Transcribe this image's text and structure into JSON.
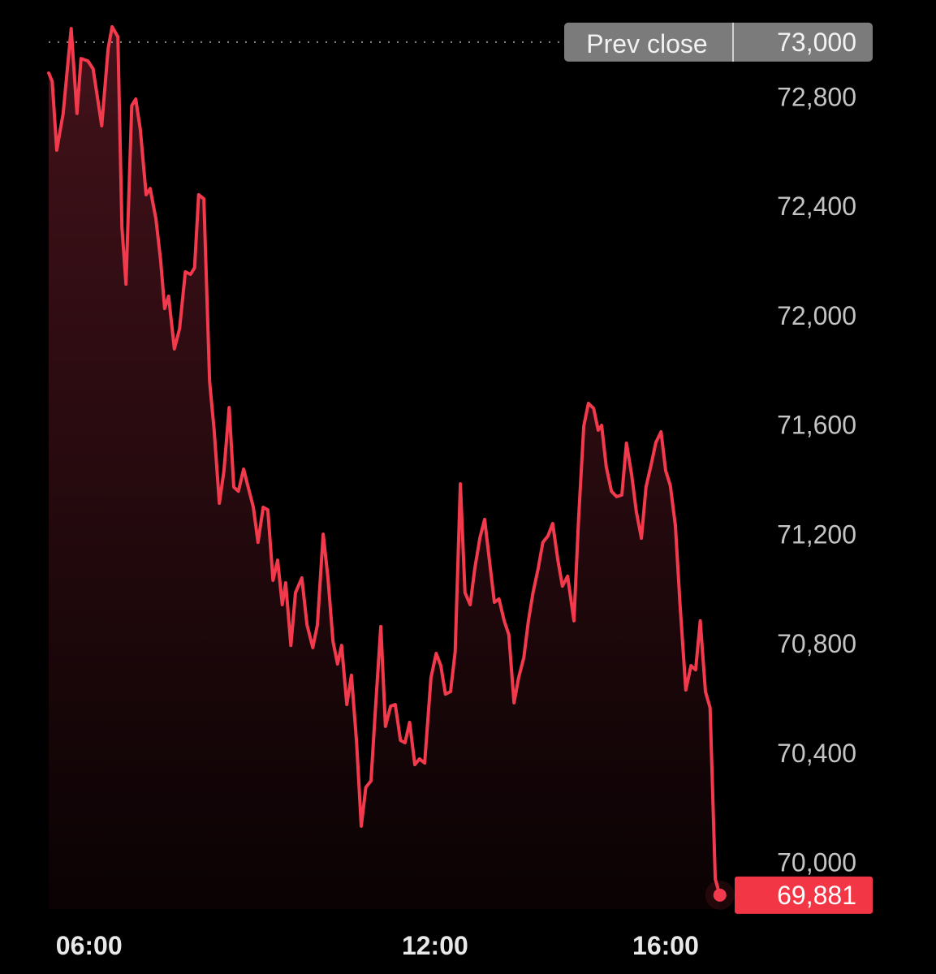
{
  "chart_data": {
    "type": "area",
    "color": "#f23a4c",
    "xlim": [
      5.3,
      17.0
    ],
    "xticks": [
      {
        "value": 6,
        "label": "06:00"
      },
      {
        "value": 12,
        "label": "12:00"
      },
      {
        "value": 16,
        "label": "16:00"
      }
    ],
    "ylim": [
      69830,
      73065
    ],
    "yticks": [
      {
        "value": 70000,
        "label": "70,000"
      },
      {
        "value": 70400,
        "label": "70,400"
      },
      {
        "value": 70800,
        "label": "70,800"
      },
      {
        "value": 71200,
        "label": "71,200"
      },
      {
        "value": 71600,
        "label": "71,600"
      },
      {
        "value": 72000,
        "label": "72,000"
      },
      {
        "value": 72400,
        "label": "72,400"
      },
      {
        "value": 72800,
        "label": "72,800"
      }
    ],
    "prev_close": {
      "name": "Prev close",
      "value": 73000,
      "label": "73,000"
    },
    "x": [
      5.3,
      5.36,
      5.44,
      5.55,
      5.69,
      5.79,
      5.86,
      5.98,
      6.07,
      6.22,
      6.33,
      6.4,
      6.5,
      6.57,
      6.64,
      6.74,
      6.81,
      6.89,
      6.99,
      7.06,
      7.16,
      7.24,
      7.31,
      7.38,
      7.48,
      7.57,
      7.67,
      7.76,
      7.83,
      7.9,
      7.99,
      8.09,
      8.17,
      8.26,
      8.34,
      8.43,
      8.51,
      8.59,
      8.68,
      8.76,
      8.85,
      8.93,
      9.02,
      9.1,
      9.19,
      9.27,
      9.35,
      9.41,
      9.5,
      9.58,
      9.69,
      9.78,
      9.88,
      9.96,
      10.06,
      10.14,
      10.23,
      10.31,
      10.38,
      10.47,
      10.55,
      10.64,
      10.72,
      10.8,
      10.89,
      10.97,
      11.06,
      11.14,
      11.23,
      11.31,
      11.4,
      11.48,
      11.56,
      11.65,
      11.73,
      11.82,
      11.93,
      12.02,
      12.1,
      12.18,
      12.27,
      12.35,
      12.44,
      12.52,
      12.61,
      12.69,
      12.78,
      12.86,
      12.94,
      13.03,
      13.11,
      13.2,
      13.28,
      13.37,
      13.45,
      13.54,
      13.62,
      13.7,
      13.79,
      13.87,
      13.96,
      14.04,
      14.13,
      14.21,
      14.3,
      14.41,
      14.49,
      14.58,
      14.66,
      14.75,
      14.83,
      14.89,
      14.97,
      15.06,
      15.15,
      15.24,
      15.32,
      15.41,
      15.49,
      15.58,
      15.66,
      15.75,
      15.83,
      15.92,
      16.0,
      16.08,
      16.17,
      16.25,
      16.35,
      16.44,
      16.52,
      16.6,
      16.69,
      16.77,
      16.86,
      16.94
    ],
    "values": [
      72887,
      72857,
      72605,
      72739,
      73050,
      72739,
      72940,
      72931,
      72902,
      72694,
      72976,
      73056,
      73020,
      72323,
      72115,
      72768,
      72792,
      72679,
      72442,
      72465,
      72353,
      72204,
      72026,
      72071,
      71878,
      71952,
      72160,
      72151,
      72175,
      72442,
      72427,
      71759,
      71581,
      71314,
      71433,
      71664,
      71373,
      71358,
      71439,
      71373,
      71299,
      71171,
      71299,
      71290,
      71032,
      71106,
      70943,
      71023,
      70794,
      70987,
      71041,
      70869,
      70786,
      70869,
      71201,
      71047,
      70809,
      70726,
      70794,
      70578,
      70685,
      70438,
      70133,
      70275,
      70299,
      70572,
      70863,
      70498,
      70572,
      70578,
      70447,
      70438,
      70513,
      70358,
      70379,
      70364,
      70676,
      70765,
      70720,
      70616,
      70625,
      70771,
      71385,
      70987,
      70943,
      71076,
      71189,
      71255,
      71112,
      70952,
      70964,
      70884,
      70833,
      70584,
      70676,
      70750,
      70884,
      70987,
      71076,
      71171,
      71195,
      71240,
      71106,
      71011,
      71047,
      70884,
      71255,
      71596,
      71679,
      71661,
      71581,
      71599,
      71447,
      71358,
      71338,
      71344,
      71534,
      71418,
      71284,
      71186,
      71373,
      71456,
      71536,
      71575,
      71433,
      71379,
      71231,
      70943,
      70631,
      70720,
      70705,
      70884,
      70625,
      70566,
      69940,
      69881
    ],
    "value_labels": [
      null,
      null,
      null,
      null,
      null,
      null,
      null,
      null,
      null,
      null,
      null,
      null,
      null,
      null,
      null,
      null,
      null,
      null,
      null,
      null,
      null,
      null,
      null,
      null,
      null,
      null,
      null,
      null,
      null,
      null,
      null,
      null,
      null,
      null,
      null,
      null,
      null,
      null,
      null,
      null,
      null,
      null,
      null,
      null,
      null,
      null,
      null,
      null,
      null,
      null,
      null,
      null,
      null,
      null,
      null,
      null,
      null,
      null,
      null,
      null,
      null,
      null,
      null,
      null,
      null,
      null,
      null,
      null,
      null,
      null,
      null,
      null,
      null,
      null,
      null,
      null,
      null,
      null,
      null,
      null,
      null,
      null,
      null,
      null,
      null,
      null,
      null,
      null,
      null,
      null,
      null,
      null,
      null,
      null,
      null,
      null,
      null,
      null,
      null,
      null,
      null,
      null,
      null,
      null,
      null,
      null,
      null,
      null,
      null,
      null,
      null,
      null,
      null,
      null,
      null,
      null,
      null,
      null,
      null,
      null,
      null,
      null,
      null,
      null,
      null,
      null,
      null,
      null,
      null,
      null,
      null,
      null,
      null,
      null,
      null,
      "69,881"
    ]
  }
}
